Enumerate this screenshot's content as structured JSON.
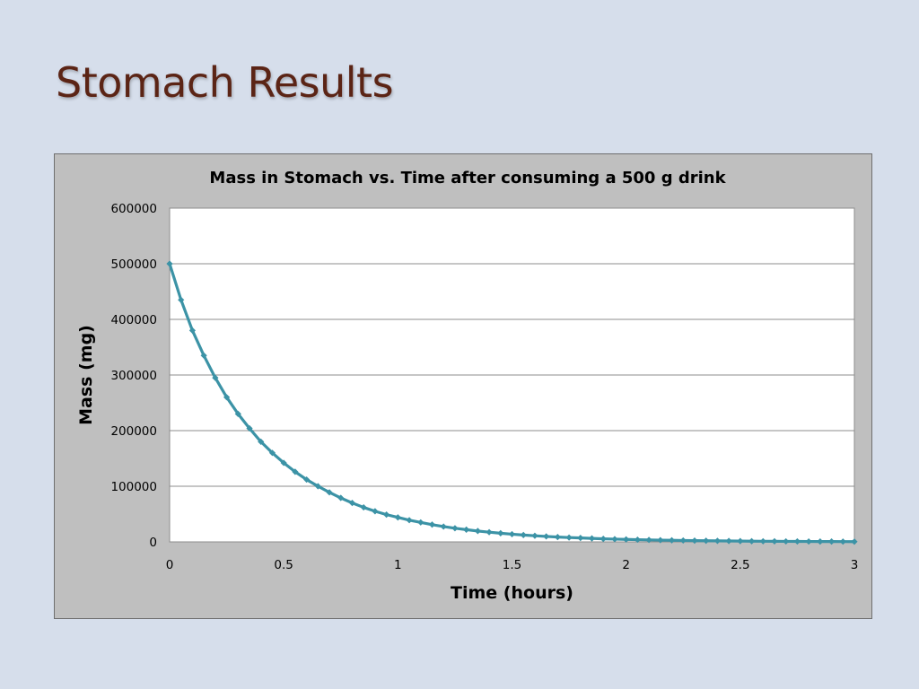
{
  "slide": {
    "title": "Stomach Results",
    "background": "#d6deeb",
    "title_color": "#5b2415"
  },
  "chart_data": {
    "type": "scatter",
    "title": "Mass in Stomach vs. Time after consuming a 500 g drink",
    "xlabel": "Time (hours)",
    "ylabel": "Mass (mg)",
    "xlim": [
      0,
      3
    ],
    "ylim": [
      0,
      600000
    ],
    "x_ticks": [
      "0",
      "0.5",
      "1",
      "1.5",
      "2",
      "2.5",
      "3"
    ],
    "y_ticks": [
      "0",
      "100000",
      "200000",
      "300000",
      "400000",
      "500000",
      "600000"
    ],
    "grid": "horizontal",
    "legend": "none",
    "marker": "diamond",
    "series_color": "#3c93a6",
    "plot_background": "#ffffff",
    "frame_background": "#bfbfbf",
    "series": [
      {
        "x": [
          0,
          0.05,
          0.1,
          0.15,
          0.2,
          0.25,
          0.3,
          0.35,
          0.4,
          0.45,
          0.5,
          0.55,
          0.6,
          0.65,
          0.7,
          0.75,
          0.8,
          0.85,
          0.9,
          0.95,
          1,
          1.05,
          1.1,
          1.15,
          1.2,
          1.25,
          1.3,
          1.35,
          1.4,
          1.45,
          1.5,
          1.55,
          1.6,
          1.65,
          1.7,
          1.75,
          1.8,
          1.85,
          1.9,
          1.95,
          2,
          2.05,
          2.1,
          2.15,
          2.2,
          2.25,
          2.3,
          2.35,
          2.4,
          2.45,
          2.5,
          2.55,
          2.6,
          2.65,
          2.7,
          2.75,
          2.8,
          2.85,
          2.9,
          2.95,
          3
        ],
        "y": [
          500000,
          435000,
          380000,
          335000,
          295000,
          260000,
          230000,
          204000,
          180000,
          160000,
          142000,
          126000,
          112000,
          100000,
          89000,
          79000,
          70000,
          62000,
          55000,
          49000,
          44000,
          39000,
          35000,
          31000,
          27500,
          24500,
          22000,
          19500,
          17400,
          15500,
          13800,
          12300,
          11000,
          9800,
          8700,
          7800,
          7000,
          6200,
          5500,
          4900,
          4400,
          3900,
          3500,
          3100,
          2800,
          2500,
          2200,
          2000,
          1800,
          1600,
          1400,
          1250,
          1100,
          1000,
          900,
          800,
          700,
          620,
          550,
          490,
          440
        ]
      }
    ]
  }
}
